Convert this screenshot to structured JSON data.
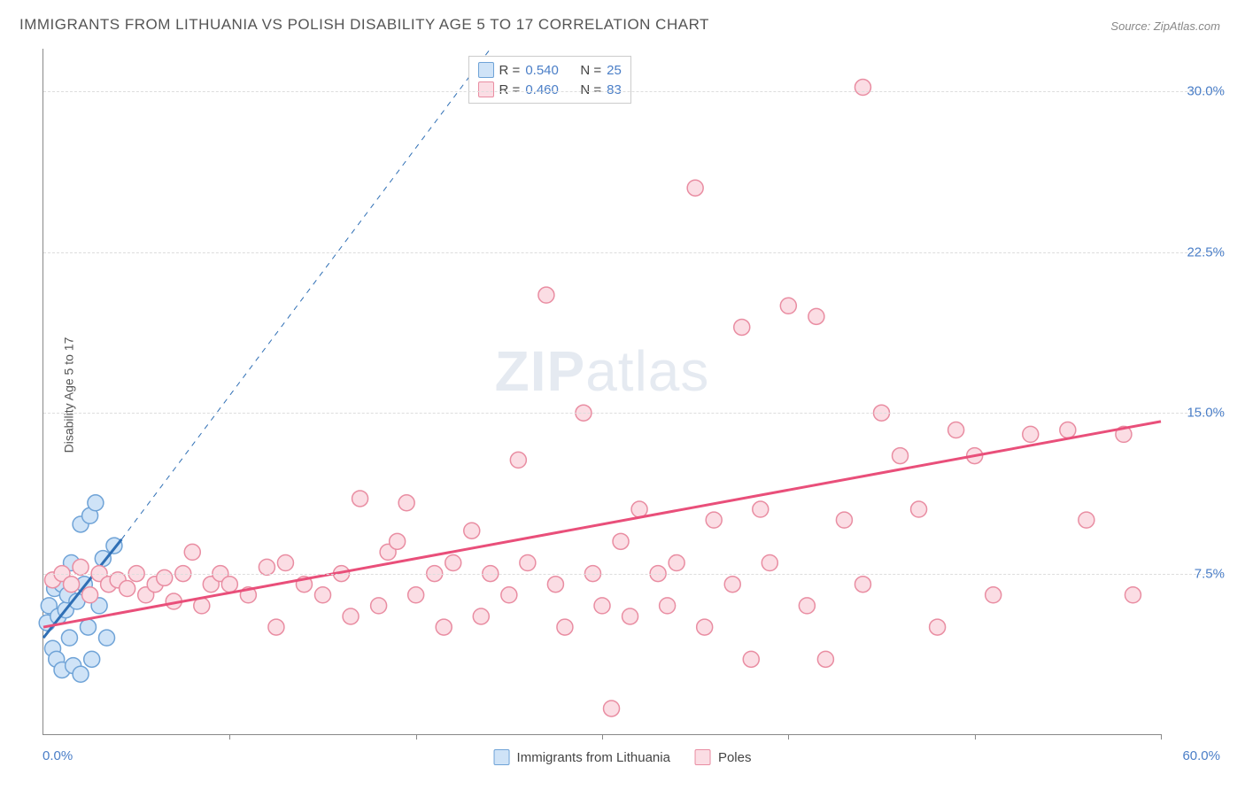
{
  "title": "IMMIGRANTS FROM LITHUANIA VS POLISH DISABILITY AGE 5 TO 17 CORRELATION CHART",
  "source_label": "Source:",
  "source_value": "ZipAtlas.com",
  "y_axis_title": "Disability Age 5 to 17",
  "watermark": {
    "bold": "ZIP",
    "rest": "atlas"
  },
  "chart": {
    "type": "scatter",
    "xlim": [
      0,
      60
    ],
    "ylim": [
      0,
      32
    ],
    "x_origin_label": "0.0%",
    "x_max_label": "60.0%",
    "x_ticks": [
      10,
      20,
      30,
      40,
      50,
      60
    ],
    "y_ticks": [
      {
        "v": 7.5,
        "label": "7.5%"
      },
      {
        "v": 15.0,
        "label": "15.0%"
      },
      {
        "v": 22.5,
        "label": "22.5%"
      },
      {
        "v": 30.0,
        "label": "30.0%"
      }
    ],
    "grid_color": "#dddddd",
    "axis_color": "#888888",
    "background": "#ffffff",
    "marker_radius": 9,
    "marker_stroke_width": 1.5,
    "series": [
      {
        "id": "lithuania",
        "label": "Immigrants from Lithuania",
        "fill": "#cfe3f7",
        "stroke": "#6fa3d7",
        "line_color": "#2f6fb5",
        "line_width": 3,
        "trend": {
          "x1": 0,
          "y1": 4.5,
          "x2": 4.2,
          "y2": 9.1,
          "extend_dashed_to": {
            "x": 24,
            "y": 32
          }
        },
        "R": "0.540",
        "N": "25",
        "points": [
          [
            0.2,
            5.2
          ],
          [
            0.3,
            6.0
          ],
          [
            0.5,
            4.0
          ],
          [
            0.6,
            6.8
          ],
          [
            0.7,
            3.5
          ],
          [
            0.8,
            5.5
          ],
          [
            1.0,
            7.0
          ],
          [
            1.0,
            3.0
          ],
          [
            1.2,
            5.8
          ],
          [
            1.3,
            6.5
          ],
          [
            1.4,
            4.5
          ],
          [
            1.5,
            8.0
          ],
          [
            1.6,
            3.2
          ],
          [
            1.8,
            6.2
          ],
          [
            2.0,
            9.8
          ],
          [
            2.0,
            2.8
          ],
          [
            2.2,
            7.0
          ],
          [
            2.4,
            5.0
          ],
          [
            2.5,
            10.2
          ],
          [
            2.6,
            3.5
          ],
          [
            2.8,
            10.8
          ],
          [
            3.0,
            6.0
          ],
          [
            3.2,
            8.2
          ],
          [
            3.4,
            4.5
          ],
          [
            3.8,
            8.8
          ]
        ]
      },
      {
        "id": "poles",
        "label": "Poles",
        "fill": "#fbdde4",
        "stroke": "#e98da2",
        "line_color": "#e94f7a",
        "line_width": 3,
        "trend": {
          "x1": 0,
          "y1": 5.0,
          "x2": 60,
          "y2": 14.6
        },
        "R": "0.460",
        "N": "83",
        "points": [
          [
            0.5,
            7.2
          ],
          [
            1,
            7.5
          ],
          [
            1.5,
            7.0
          ],
          [
            2,
            7.8
          ],
          [
            2.5,
            6.5
          ],
          [
            3,
            7.5
          ],
          [
            3.5,
            7.0
          ],
          [
            4,
            7.2
          ],
          [
            4.5,
            6.8
          ],
          [
            5,
            7.5
          ],
          [
            5.5,
            6.5
          ],
          [
            6,
            7.0
          ],
          [
            6.5,
            7.3
          ],
          [
            7,
            6.2
          ],
          [
            7.5,
            7.5
          ],
          [
            8,
            8.5
          ],
          [
            8.5,
            6.0
          ],
          [
            9,
            7.0
          ],
          [
            9.5,
            7.5
          ],
          [
            10,
            7.0
          ],
          [
            11,
            6.5
          ],
          [
            12,
            7.8
          ],
          [
            12.5,
            5.0
          ],
          [
            13,
            8.0
          ],
          [
            14,
            7.0
          ],
          [
            15,
            6.5
          ],
          [
            16,
            7.5
          ],
          [
            16.5,
            5.5
          ],
          [
            17,
            11.0
          ],
          [
            18,
            6.0
          ],
          [
            18.5,
            8.5
          ],
          [
            19,
            9.0
          ],
          [
            19.5,
            10.8
          ],
          [
            20,
            6.5
          ],
          [
            21,
            7.5
          ],
          [
            21.5,
            5.0
          ],
          [
            22,
            8.0
          ],
          [
            23,
            9.5
          ],
          [
            23.5,
            5.5
          ],
          [
            24,
            7.5
          ],
          [
            25,
            6.5
          ],
          [
            25.5,
            12.8
          ],
          [
            26,
            8.0
          ],
          [
            27,
            20.5
          ],
          [
            27.5,
            7.0
          ],
          [
            28,
            5.0
          ],
          [
            29,
            15.0
          ],
          [
            29.5,
            7.5
          ],
          [
            30,
            6.0
          ],
          [
            30.5,
            1.2
          ],
          [
            31,
            9.0
          ],
          [
            31.5,
            5.5
          ],
          [
            32,
            10.5
          ],
          [
            33,
            7.5
          ],
          [
            33.5,
            6.0
          ],
          [
            34,
            8.0
          ],
          [
            35,
            25.5
          ],
          [
            35.5,
            5.0
          ],
          [
            36,
            10.0
          ],
          [
            37,
            7.0
          ],
          [
            37.5,
            19.0
          ],
          [
            38,
            3.5
          ],
          [
            38.5,
            10.5
          ],
          [
            39,
            8.0
          ],
          [
            40,
            20.0
          ],
          [
            41,
            6.0
          ],
          [
            41.5,
            19.5
          ],
          [
            42,
            3.5
          ],
          [
            43,
            10.0
          ],
          [
            44,
            30.2
          ],
          [
            44,
            7.0
          ],
          [
            45,
            15.0
          ],
          [
            46,
            13.0
          ],
          [
            47,
            10.5
          ],
          [
            48,
            5.0
          ],
          [
            49,
            14.2
          ],
          [
            50,
            13.0
          ],
          [
            51,
            6.5
          ],
          [
            53,
            14.0
          ],
          [
            55,
            14.2
          ],
          [
            56,
            10.0
          ],
          [
            58,
            14.0
          ],
          [
            58.5,
            6.5
          ]
        ]
      }
    ]
  },
  "legend_top": {
    "R_label": "R =",
    "N_label": "N ="
  }
}
